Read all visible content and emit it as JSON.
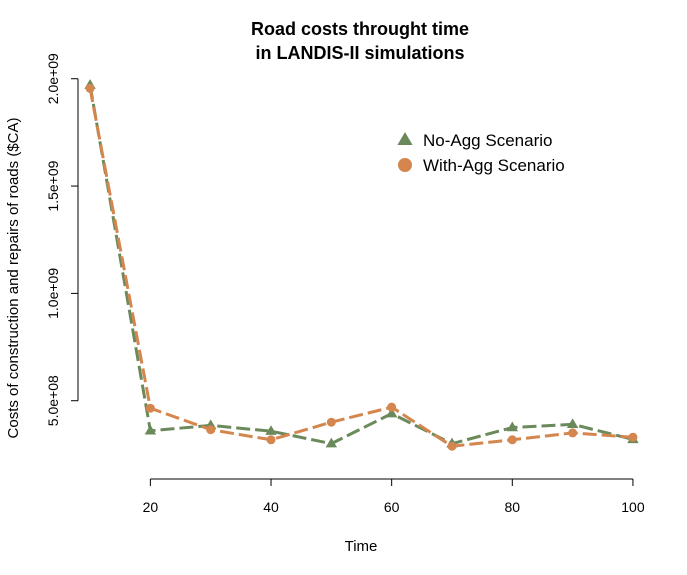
{
  "chart_data": {
    "type": "line",
    "title_lines": [
      "Road costs throught time",
      "in LANDIS-II simulations"
    ],
    "xlabel": "Time",
    "ylabel": "Costs of construction and repairs of roads ($CA)",
    "x": [
      10,
      20,
      30,
      40,
      50,
      60,
      70,
      80,
      90,
      100
    ],
    "xlim": [
      8,
      102
    ],
    "ylim": [
      140000000,
      2050000000
    ],
    "x_ticks": [
      20,
      40,
      60,
      80,
      100
    ],
    "x_tick_labels": [
      "20",
      "40",
      "60",
      "80",
      "100"
    ],
    "y_ticks": [
      500000000,
      1000000000,
      1500000000,
      2000000000
    ],
    "y_tick_labels": [
      "5.0e+08",
      "1.0e+09",
      "1.5e+09",
      "2.0e+09"
    ],
    "grid": false,
    "legend_position": "top-right",
    "series": [
      {
        "name": "No-Agg Scenario",
        "marker": "triangle",
        "color": "#6b8a5b",
        "values": [
          1970000000,
          360000000,
          385000000,
          358000000,
          300000000,
          440000000,
          300000000,
          375000000,
          390000000,
          320000000
        ]
      },
      {
        "name": "With-Agg Scenario",
        "marker": "circle",
        "color": "#d4864e",
        "values": [
          1955000000,
          465000000,
          365000000,
          318000000,
          400000000,
          470000000,
          288000000,
          318000000,
          350000000,
          330000000
        ]
      }
    ]
  }
}
